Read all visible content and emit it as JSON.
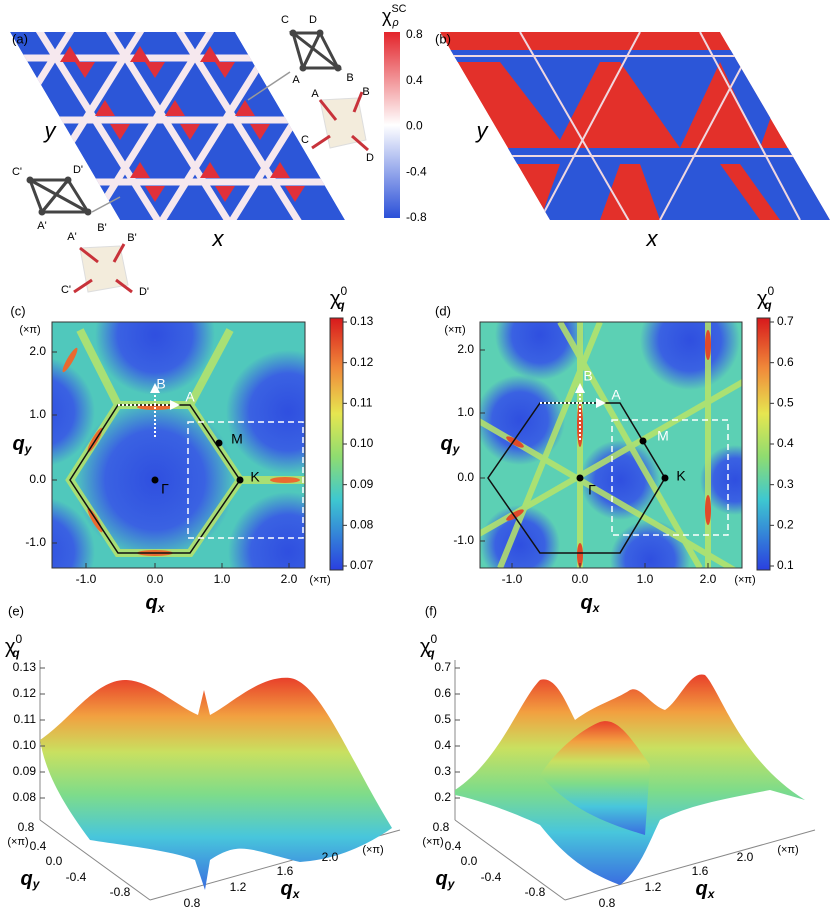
{
  "panel_a": {
    "label": "(a)",
    "x_label": "x",
    "y_label": "y",
    "colorbar": {
      "symbol": "χ",
      "sub": "ρ",
      "sup": "SC",
      "ticks": [
        "0.8",
        "0.4",
        "0.0",
        "-0.4",
        "-0.8"
      ]
    },
    "inset_top": {
      "sites": [
        "C",
        "D",
        "A",
        "B"
      ],
      "rods": [
        "A",
        "B",
        "C",
        "D"
      ]
    },
    "inset_bottom": {
      "sites": [
        "C'",
        "D'",
        "A'",
        "B'"
      ],
      "rods": [
        "A'",
        "B'",
        "C'",
        "D'"
      ]
    }
  },
  "panel_b": {
    "label": "(b)",
    "x_label": "x",
    "y_label": "y"
  },
  "panel_c": {
    "label": "(c)",
    "q": "q",
    "x_sub": "x",
    "y_sub": "y",
    "unit": "(×π)",
    "xticks": [
      "-1.0",
      "0.0",
      "1.0",
      "2.0"
    ],
    "yticks": [
      "2.0",
      "1.0",
      "0.0",
      "-1.0"
    ],
    "points": [
      "B",
      "A",
      "M",
      "K",
      "Γ"
    ],
    "colorbar": {
      "symbol": "χ",
      "sup": "0",
      "sub": "q",
      "ticks": [
        "0.13",
        "0.12",
        "0.11",
        "0.10",
        "0.09",
        "0.08",
        "0.07"
      ]
    }
  },
  "panel_d": {
    "label": "(d)",
    "q": "q",
    "x_sub": "x",
    "y_sub": "y",
    "unit": "(×π)",
    "xticks": [
      "-1.0",
      "0.0",
      "1.0",
      "2.0"
    ],
    "yticks": [
      "2.0",
      "1.0",
      "0.0",
      "-1.0"
    ],
    "points": [
      "B",
      "A",
      "M",
      "K",
      "Γ"
    ],
    "colorbar": {
      "symbol": "χ",
      "sup": "0",
      "sub": "q",
      "ticks": [
        "0.7",
        "0.6",
        "0.5",
        "0.4",
        "0.3",
        "0.2",
        "0.1"
      ]
    }
  },
  "panel_e": {
    "label": "(e)",
    "q": "q",
    "x_sub": "x",
    "y_sub": "y",
    "unit": "(×π)",
    "z": {
      "symbol": "χ",
      "sup": "0",
      "sub": "q"
    },
    "zticks": [
      "0.13",
      "0.12",
      "0.11",
      "0.10",
      "0.09",
      "0.08"
    ],
    "yticks": [
      "0.8",
      "0.4",
      "0.0",
      "-0.4",
      "-0.8"
    ],
    "xticks": [
      "0.8",
      "1.2",
      "1.6",
      "2.0"
    ]
  },
  "panel_f": {
    "label": "(f)",
    "q": "q",
    "x_sub": "x",
    "y_sub": "y",
    "unit": "(×π)",
    "z": {
      "symbol": "χ",
      "sup": "0",
      "sub": "q"
    },
    "zticks": [
      "0.7",
      "0.6",
      "0.5",
      "0.4",
      "0.3",
      "0.2"
    ],
    "yticks": [
      "0.8",
      "0.4",
      "0.0",
      "-0.4",
      "-0.8"
    ],
    "xticks": [
      "0.8",
      "1.2",
      "1.6",
      "2.0"
    ]
  }
}
